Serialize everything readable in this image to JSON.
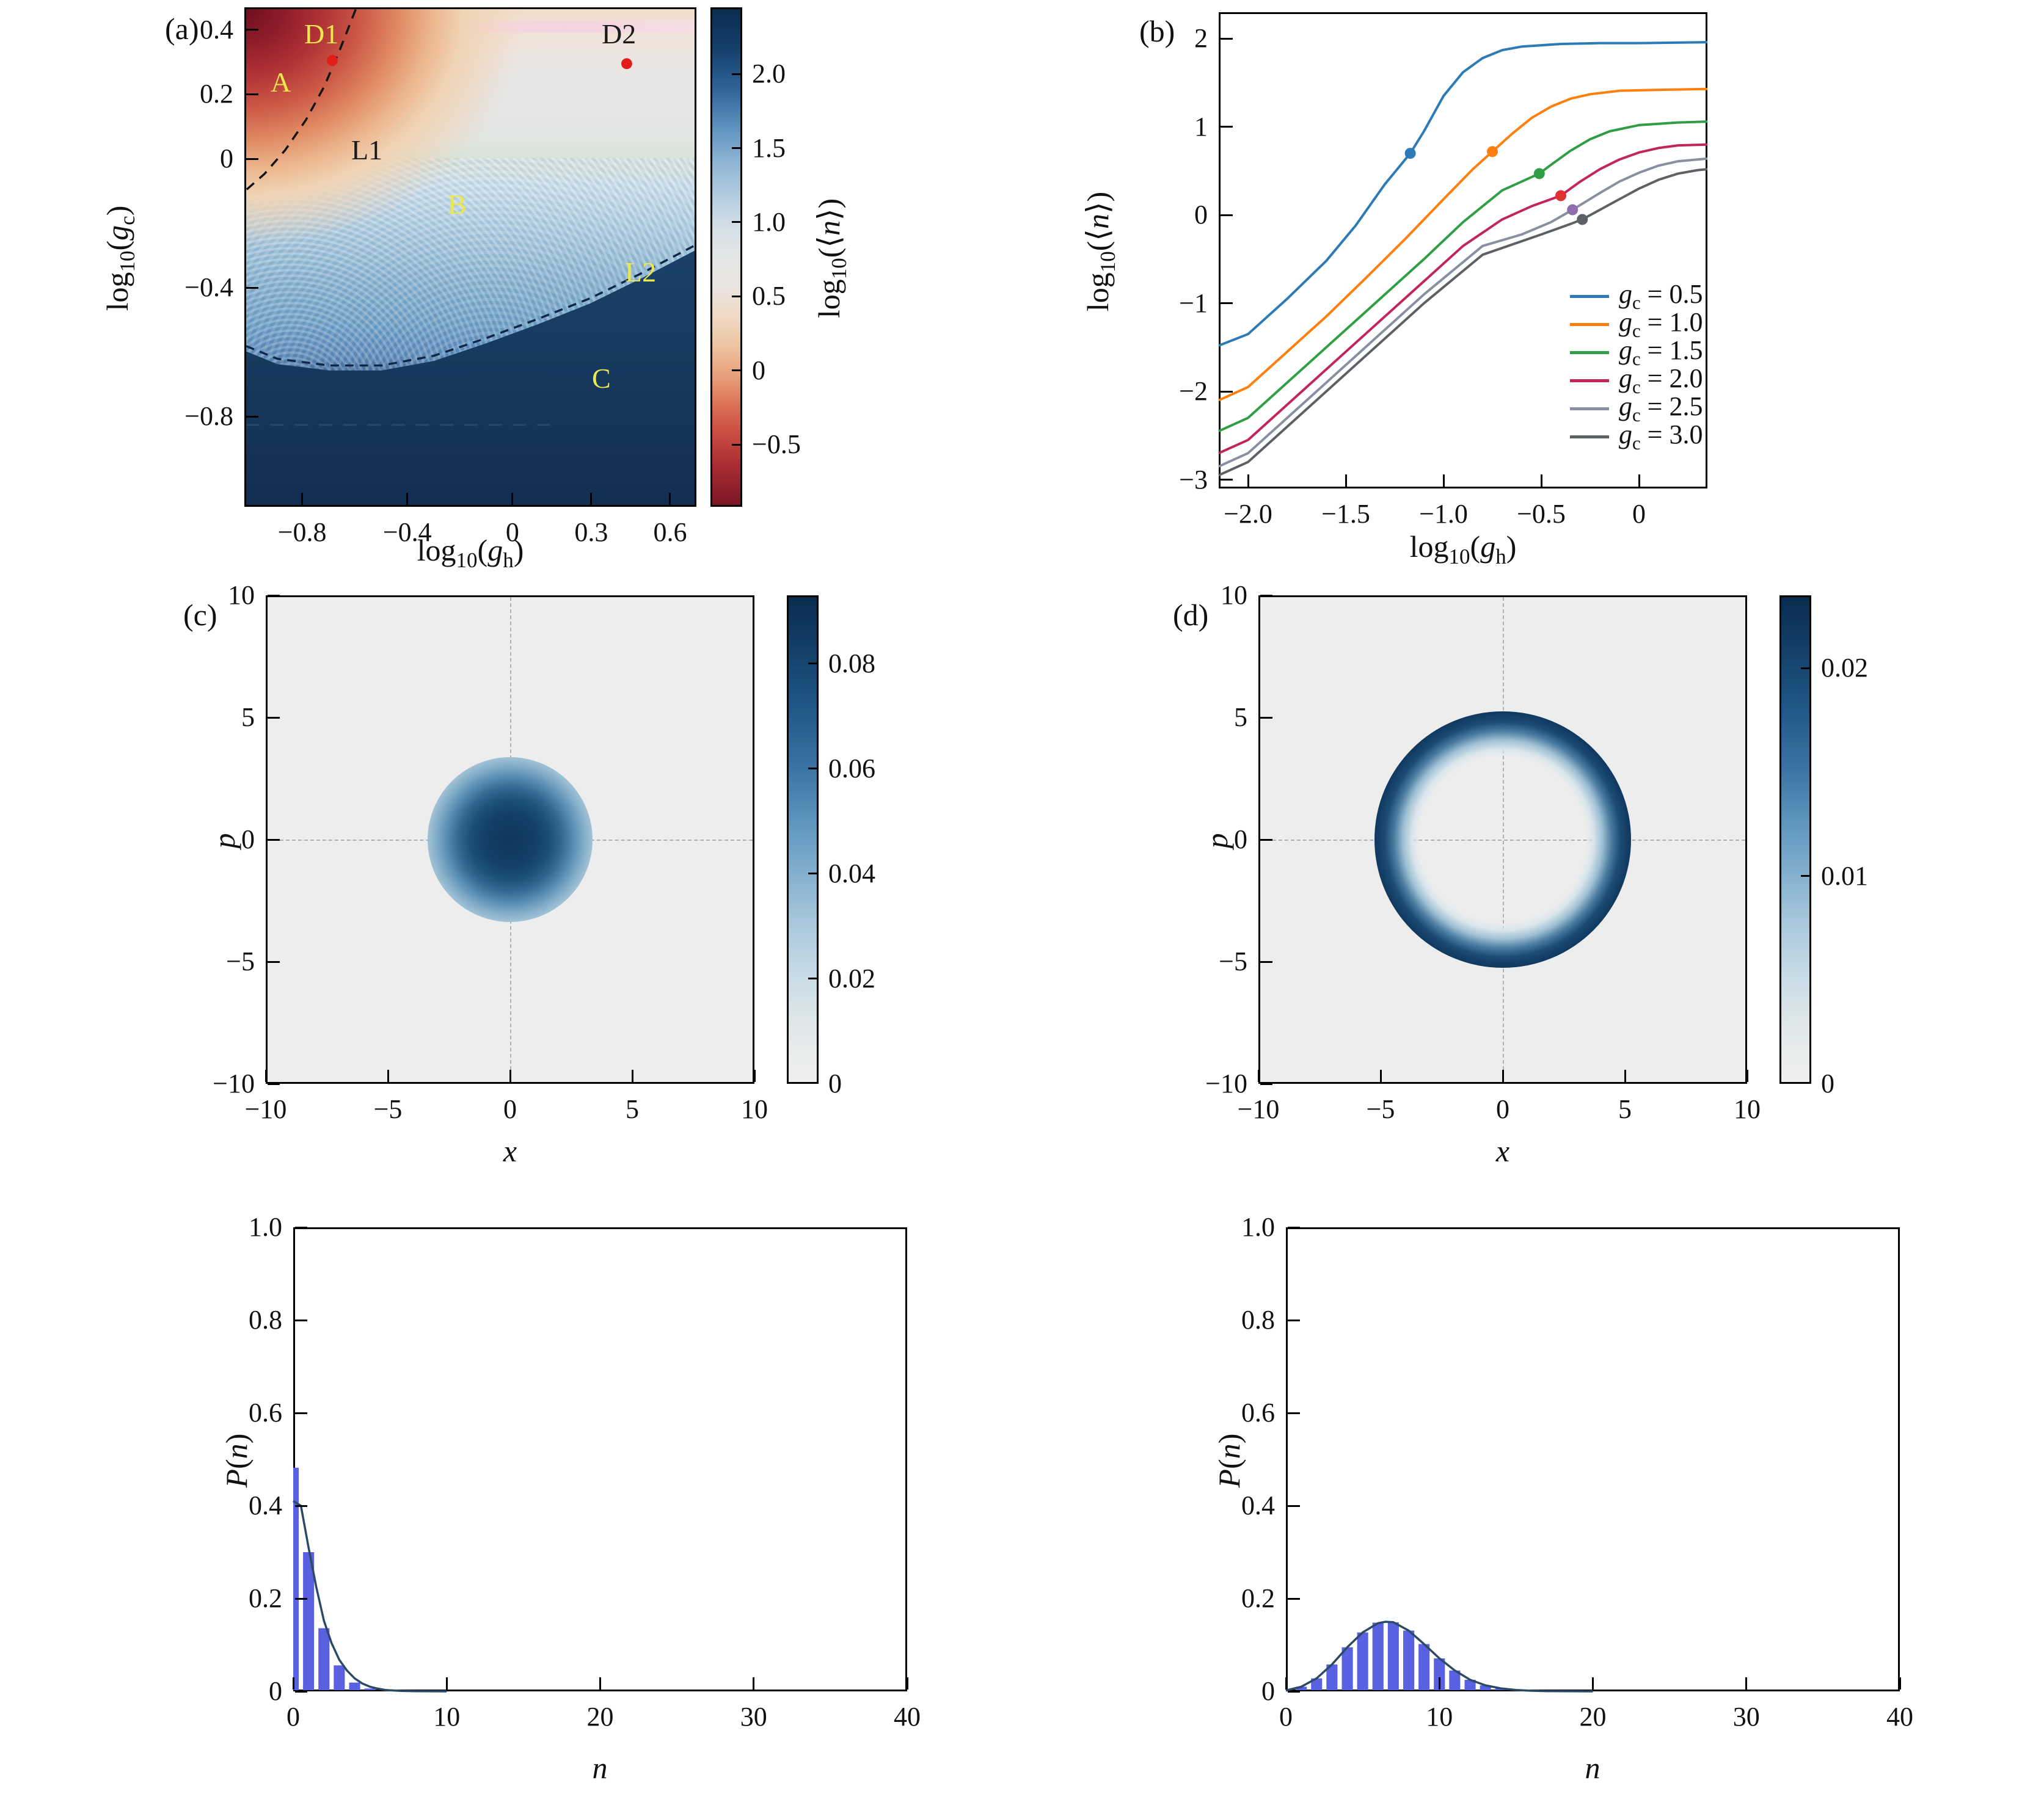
{
  "figure": {
    "description": "Six-panel physics figure: (a) phase diagram heatmap of log10(<n>) vs log10(g_h) and log10(g_c); (b) photon number curves vs log10(g_h) for several g_c; (c,d) phase-space (Wigner) distributions at points D1 and D2; bottom: photon number distributions P(n).",
    "accent_colors": {
      "bar_blue": "#5a61e0",
      "dot_red": "#e31c1c",
      "annotation_yellow": "#ede74e",
      "dark_navy": "#132f52"
    }
  },
  "chart_data": [
    {
      "id": "a",
      "type": "heatmap",
      "panel_label": "(a)",
      "xlabel": "log10(g_h)",
      "xlabel_html": "log<sub>10</sub>(<i>g</i><sub>h</sub>)",
      "ylabel": "log10(g_c)",
      "ylabel_html": "log<sub>10</sub>(<i>g</i><sub>c</sub>)",
      "x_range": [
        -1.02,
        0.7
      ],
      "y_range": [
        -1.08,
        0.47
      ],
      "x_ticks": [
        -0.8,
        -0.4,
        0,
        0.3,
        0.6
      ],
      "x_tick_labels": [
        "−0.8",
        "−0.4",
        "0",
        "0.3",
        "0.6"
      ],
      "y_ticks": [
        0.4,
        0.2,
        0,
        -0.4,
        -0.8
      ],
      "y_tick_labels": [
        "0.4",
        "0.2",
        "0",
        "−0.4",
        "−0.8"
      ],
      "colorbar": {
        "label": "log10(<n>)",
        "label_html": "log<sub>10</sub>(⟨<i>n</i>⟩)",
        "range": [
          -0.92,
          2.45
        ],
        "ticks": [
          2.0,
          1.5,
          1.0,
          0.5,
          0,
          -0.5
        ],
        "tick_labels": [
          "2.0",
          "1.5",
          "1.0",
          "0.5",
          "0",
          "−0.5"
        ],
        "colormap": "red-gray-blue diverging, dark red = low, dark navy = high"
      },
      "regions": [
        {
          "name": "A",
          "meaning": "low photon number region (red)"
        },
        {
          "name": "B",
          "meaning": "intermediate fringed region (light blue)"
        },
        {
          "name": "C",
          "meaning": "high photon number region (dark navy)"
        }
      ],
      "boundaries": [
        {
          "name": "L1",
          "style": "black dashed",
          "points_xy": [
            [
              -0.6,
              0.47
            ],
            [
              -0.66,
              0.345
            ],
            [
              -0.72,
              0.23
            ],
            [
              -0.79,
              0.125
            ],
            [
              -0.87,
              0.03
            ],
            [
              -0.95,
              -0.045
            ],
            [
              -1.02,
              -0.095
            ]
          ]
        },
        {
          "name": "L2",
          "style": "dark navy dashed",
          "points_xy": [
            [
              -1.02,
              -0.6
            ],
            [
              -0.9,
              -0.64
            ],
            [
              -0.7,
              -0.66
            ],
            [
              -0.5,
              -0.66
            ],
            [
              -0.3,
              -0.63
            ],
            [
              -0.1,
              -0.575
            ],
            [
              0.1,
              -0.515
            ],
            [
              0.3,
              -0.45
            ],
            [
              0.5,
              -0.37
            ],
            [
              0.7,
              -0.285
            ]
          ]
        }
      ],
      "points": [
        {
          "name": "D1",
          "x": -0.69,
          "y": 0.31,
          "color": "#e31c1c"
        },
        {
          "name": "D2",
          "x": 0.44,
          "y": 0.3,
          "color": "#e31c1c"
        }
      ],
      "annotations": [
        {
          "text": "D1",
          "color": "#ede74e"
        },
        {
          "text": "D2",
          "color": "#1a1a1a"
        },
        {
          "text": "A",
          "color": "#ede74e"
        },
        {
          "text": "B",
          "color": "#ede74e"
        },
        {
          "text": "C",
          "color": "#ede74e"
        },
        {
          "text": "L1",
          "color": "#1a1a1a"
        },
        {
          "text": "L2",
          "color": "#ede74e"
        }
      ]
    },
    {
      "id": "b",
      "type": "line",
      "panel_label": "(b)",
      "xlabel": "log10(g_h)",
      "xlabel_html": "log<sub>10</sub>(<i>g</i><sub>h</sub>)",
      "ylabel": "log10(<n>)",
      "ylabel_html": "log<sub>10</sub>(⟨<i>n</i>⟩)",
      "x_range": [
        -2.15,
        0.35
      ],
      "y_range": [
        -3.1,
        2.3
      ],
      "x_ticks": [
        -2.0,
        -1.5,
        -1.0,
        -0.5,
        0
      ],
      "x_tick_labels": [
        "−2.0",
        "−1.5",
        "−1.0",
        "−0.5",
        "0"
      ],
      "y_ticks": [
        2,
        1,
        0,
        -1,
        -2,
        -3
      ],
      "y_tick_labels": [
        "2",
        "1",
        "0",
        "−1",
        "−2",
        "−3"
      ],
      "legend_position": "center-right",
      "series": [
        {
          "name": "gc = 0.5",
          "label_html": "<i>g</i><sub>c</sub> = 0.5",
          "color": "#2d7bb6",
          "points": [
            [
              -2.15,
              -1.48
            ],
            [
              -2.0,
              -1.35
            ],
            [
              -1.8,
              -0.95
            ],
            [
              -1.6,
              -0.52
            ],
            [
              -1.45,
              -0.12
            ],
            [
              -1.3,
              0.35
            ],
            [
              -1.17,
              0.7
            ],
            [
              -1.1,
              0.95
            ],
            [
              -1.0,
              1.35
            ],
            [
              -0.9,
              1.62
            ],
            [
              -0.8,
              1.78
            ],
            [
              -0.7,
              1.87
            ],
            [
              -0.6,
              1.91
            ],
            [
              -0.4,
              1.94
            ],
            [
              -0.2,
              1.95
            ],
            [
              0,
              1.95
            ],
            [
              0.35,
              1.96
            ]
          ],
          "marker": [
            -1.17,
            0.7
          ],
          "marker_color": "#2d7bb6"
        },
        {
          "name": "gc = 1.0",
          "label_html": "<i>g</i><sub>c</sub> = 1.0",
          "color": "#ff7f0e",
          "points": [
            [
              -2.15,
              -2.1
            ],
            [
              -2.0,
              -1.95
            ],
            [
              -1.8,
              -1.55
            ],
            [
              -1.6,
              -1.15
            ],
            [
              -1.4,
              -0.72
            ],
            [
              -1.2,
              -0.28
            ],
            [
              -1.0,
              0.18
            ],
            [
              -0.85,
              0.52
            ],
            [
              -0.75,
              0.72
            ],
            [
              -0.65,
              0.92
            ],
            [
              -0.55,
              1.1
            ],
            [
              -0.45,
              1.23
            ],
            [
              -0.35,
              1.32
            ],
            [
              -0.25,
              1.37
            ],
            [
              -0.1,
              1.41
            ],
            [
              0.1,
              1.42
            ],
            [
              0.35,
              1.43
            ]
          ],
          "marker": [
            -0.75,
            0.72
          ],
          "marker_color": "#ff7f0e"
        },
        {
          "name": "gc = 1.5",
          "label_html": "<i>g</i><sub>c</sub> = 1.5",
          "color": "#2f9e44",
          "points": [
            [
              -2.15,
              -2.45
            ],
            [
              -2.0,
              -2.3
            ],
            [
              -1.7,
              -1.7
            ],
            [
              -1.4,
              -1.1
            ],
            [
              -1.1,
              -0.5
            ],
            [
              -0.9,
              -0.08
            ],
            [
              -0.7,
              0.28
            ],
            [
              -0.51,
              0.47
            ],
            [
              -0.45,
              0.57
            ],
            [
              -0.35,
              0.73
            ],
            [
              -0.25,
              0.86
            ],
            [
              -0.15,
              0.95
            ],
            [
              0,
              1.02
            ],
            [
              0.2,
              1.05
            ],
            [
              0.35,
              1.06
            ]
          ],
          "marker": [
            -0.51,
            0.47
          ],
          "marker_color": "#2f9e44"
        },
        {
          "name": "gc = 2.0",
          "label_html": "<i>g</i><sub>c</sub> = 2.0",
          "color": "#c2255c",
          "points": [
            [
              -2.15,
              -2.7
            ],
            [
              -2.0,
              -2.55
            ],
            [
              -1.7,
              -1.95
            ],
            [
              -1.4,
              -1.35
            ],
            [
              -1.1,
              -0.75
            ],
            [
              -0.9,
              -0.35
            ],
            [
              -0.7,
              -0.05
            ],
            [
              -0.55,
              0.1
            ],
            [
              -0.4,
              0.22
            ],
            [
              -0.3,
              0.38
            ],
            [
              -0.2,
              0.52
            ],
            [
              -0.1,
              0.63
            ],
            [
              0,
              0.71
            ],
            [
              0.1,
              0.76
            ],
            [
              0.2,
              0.79
            ],
            [
              0.35,
              0.8
            ]
          ],
          "marker": [
            -0.4,
            0.22
          ],
          "marker_color": "#e03131"
        },
        {
          "name": "gc = 2.5",
          "label_html": "<i>g</i><sub>c</sub> = 2.5",
          "color": "#8a8fa0",
          "points": [
            [
              -2.15,
              -2.85
            ],
            [
              -2.0,
              -2.7
            ],
            [
              -1.7,
              -2.1
            ],
            [
              -1.4,
              -1.5
            ],
            [
              -1.1,
              -0.9
            ],
            [
              -0.8,
              -0.35
            ],
            [
              -0.6,
              -0.22
            ],
            [
              -0.45,
              -0.08
            ],
            [
              -0.34,
              0.06
            ],
            [
              -0.2,
              0.25
            ],
            [
              -0.1,
              0.38
            ],
            [
              0,
              0.48
            ],
            [
              0.1,
              0.56
            ],
            [
              0.2,
              0.61
            ],
            [
              0.35,
              0.64
            ]
          ],
          "marker": [
            -0.34,
            0.06
          ],
          "marker_color": "#8d6fae"
        },
        {
          "name": "gc = 3.0",
          "label_html": "<i>g</i><sub>c</sub> = 3.0",
          "color": "#5d6166",
          "points": [
            [
              -2.15,
              -2.95
            ],
            [
              -2.0,
              -2.8
            ],
            [
              -1.7,
              -2.2
            ],
            [
              -1.4,
              -1.6
            ],
            [
              -1.1,
              -1.0
            ],
            [
              -0.8,
              -0.45
            ],
            [
              -0.5,
              -0.22
            ],
            [
              -0.35,
              -0.1
            ],
            [
              -0.29,
              -0.05
            ],
            [
              -0.15,
              0.12
            ],
            [
              0,
              0.3
            ],
            [
              0.1,
              0.4
            ],
            [
              0.2,
              0.47
            ],
            [
              0.3,
              0.51
            ],
            [
              0.35,
              0.52
            ]
          ],
          "marker": [
            -0.29,
            -0.05
          ],
          "marker_color": "#5d6166"
        }
      ]
    },
    {
      "id": "c",
      "type": "heatmap",
      "panel_label": "(c)",
      "xlabel": "x",
      "xlabel_html": "<i>x</i>",
      "ylabel": "p",
      "ylabel_html": "<i>p</i>",
      "x_range": [
        -10,
        10
      ],
      "y_range": [
        -10,
        10
      ],
      "x_ticks": [
        -10,
        -5,
        0,
        5,
        10
      ],
      "x_tick_labels": [
        "−10",
        "−5",
        "0",
        "5",
        "10"
      ],
      "y_ticks": [
        10,
        5,
        0,
        -5,
        -10
      ],
      "y_tick_labels": [
        "10",
        "5",
        "0",
        "−5",
        "−10"
      ],
      "distribution": {
        "shape": "gaussian_blob",
        "center": [
          0,
          0
        ],
        "radius": 2.8,
        "peak": 0.09
      },
      "colorbar": {
        "range": [
          0,
          0.093
        ],
        "ticks": [
          0.08,
          0.06,
          0.04,
          0.02,
          0
        ],
        "tick_labels": [
          "0.08",
          "0.06",
          "0.04",
          "0.02",
          "0"
        ],
        "colormap": "light gray to dark navy sequential"
      }
    },
    {
      "id": "d",
      "type": "heatmap",
      "panel_label": "(d)",
      "xlabel": "x",
      "xlabel_html": "<i>x</i>",
      "ylabel": "p",
      "ylabel_html": "<i>p</i>",
      "x_range": [
        -10,
        10
      ],
      "y_range": [
        -10,
        10
      ],
      "x_ticks": [
        -10,
        -5,
        0,
        5,
        10
      ],
      "x_tick_labels": [
        "−10",
        "−5",
        "0",
        "5",
        "10"
      ],
      "y_ticks": [
        10,
        5,
        0,
        -5,
        -10
      ],
      "y_tick_labels": [
        "10",
        "5",
        "0",
        "−5",
        "−10"
      ],
      "distribution": {
        "shape": "ring",
        "center": [
          0,
          0
        ],
        "ring_radius": 3.7,
        "ring_width": 1.5,
        "peak": 0.023
      },
      "colorbar": {
        "range": [
          0,
          0.0235
        ],
        "ticks": [
          0.02,
          0.01,
          0
        ],
        "tick_labels": [
          "0.02",
          "0.01",
          "0"
        ],
        "colormap": "light gray to dark navy sequential"
      }
    },
    {
      "id": "pn_left",
      "type": "bar",
      "panel_label": "",
      "xlabel": "n",
      "xlabel_html": "<i>n</i>",
      "ylabel": "P(n)",
      "ylabel_html": "<i>P</i>(<i>n</i>)",
      "x_range": [
        0,
        40
      ],
      "y_range": [
        0,
        1.0
      ],
      "x_ticks": [
        0,
        10,
        20,
        30,
        40
      ],
      "x_tick_labels": [
        "0",
        "10",
        "20",
        "30",
        "40"
      ],
      "y_ticks": [
        1.0,
        0.8,
        0.6,
        0.4,
        0.2,
        0
      ],
      "y_tick_labels": [
        "1.0",
        "0.8",
        "0.6",
        "0.4",
        "0.2",
        "0"
      ],
      "bar_color": "#5a61e0",
      "categories": [
        0,
        1,
        2,
        3,
        4,
        5,
        6
      ],
      "values": [
        0.482,
        0.3,
        0.136,
        0.056,
        0.019,
        0.006,
        0.002
      ],
      "curve_color": "#2c4a66",
      "curve_points": [
        [
          0,
          0.41
        ],
        [
          0.5,
          0.4
        ],
        [
          1,
          0.31
        ],
        [
          1.5,
          0.225
        ],
        [
          2,
          0.152
        ],
        [
          2.5,
          0.104
        ],
        [
          3,
          0.068
        ],
        [
          3.5,
          0.045
        ],
        [
          4,
          0.028
        ],
        [
          4.5,
          0.017
        ],
        [
          5,
          0.01
        ],
        [
          5.5,
          0.006
        ],
        [
          6,
          0.003
        ],
        [
          7,
          0.001
        ],
        [
          8,
          0.0004
        ],
        [
          10,
          0
        ]
      ]
    },
    {
      "id": "pn_right",
      "type": "bar",
      "panel_label": "",
      "xlabel": "n",
      "xlabel_html": "<i>n</i>",
      "ylabel": "P(n)",
      "ylabel_html": "<i>P</i>(<i>n</i>)",
      "x_range": [
        0,
        40
      ],
      "y_range": [
        0,
        1.0
      ],
      "x_ticks": [
        0,
        10,
        20,
        30,
        40
      ],
      "x_tick_labels": [
        "0",
        "10",
        "20",
        "30",
        "40"
      ],
      "y_ticks": [
        1.0,
        0.8,
        0.6,
        0.4,
        0.2,
        0
      ],
      "y_tick_labels": [
        "1.0",
        "0.8",
        "0.6",
        "0.4",
        "0.2",
        "0"
      ],
      "bar_color": "#5a61e0",
      "categories": [
        0,
        1,
        2,
        3,
        4,
        5,
        6,
        7,
        8,
        9,
        10,
        11,
        12,
        13,
        14,
        15,
        16,
        17
      ],
      "values": [
        0.002,
        0.01,
        0.028,
        0.058,
        0.095,
        0.127,
        0.148,
        0.149,
        0.131,
        0.102,
        0.071,
        0.045,
        0.025,
        0.013,
        0.006,
        0.003,
        0.001,
        0.0005
      ],
      "curve_color": "#2c4a66",
      "curve_points": [
        [
          0,
          0.002
        ],
        [
          1,
          0.01
        ],
        [
          2,
          0.028
        ],
        [
          3,
          0.058
        ],
        [
          4,
          0.095
        ],
        [
          5,
          0.127
        ],
        [
          6,
          0.147
        ],
        [
          6.5,
          0.15
        ],
        [
          7,
          0.149
        ],
        [
          8,
          0.131
        ],
        [
          9,
          0.102
        ],
        [
          10,
          0.071
        ],
        [
          11,
          0.045
        ],
        [
          12,
          0.025
        ],
        [
          13,
          0.013
        ],
        [
          14,
          0.0065
        ],
        [
          15,
          0.003
        ],
        [
          16,
          0.0013
        ],
        [
          17,
          0.0005
        ],
        [
          18,
          0.0002
        ],
        [
          20,
          0
        ]
      ]
    }
  ]
}
